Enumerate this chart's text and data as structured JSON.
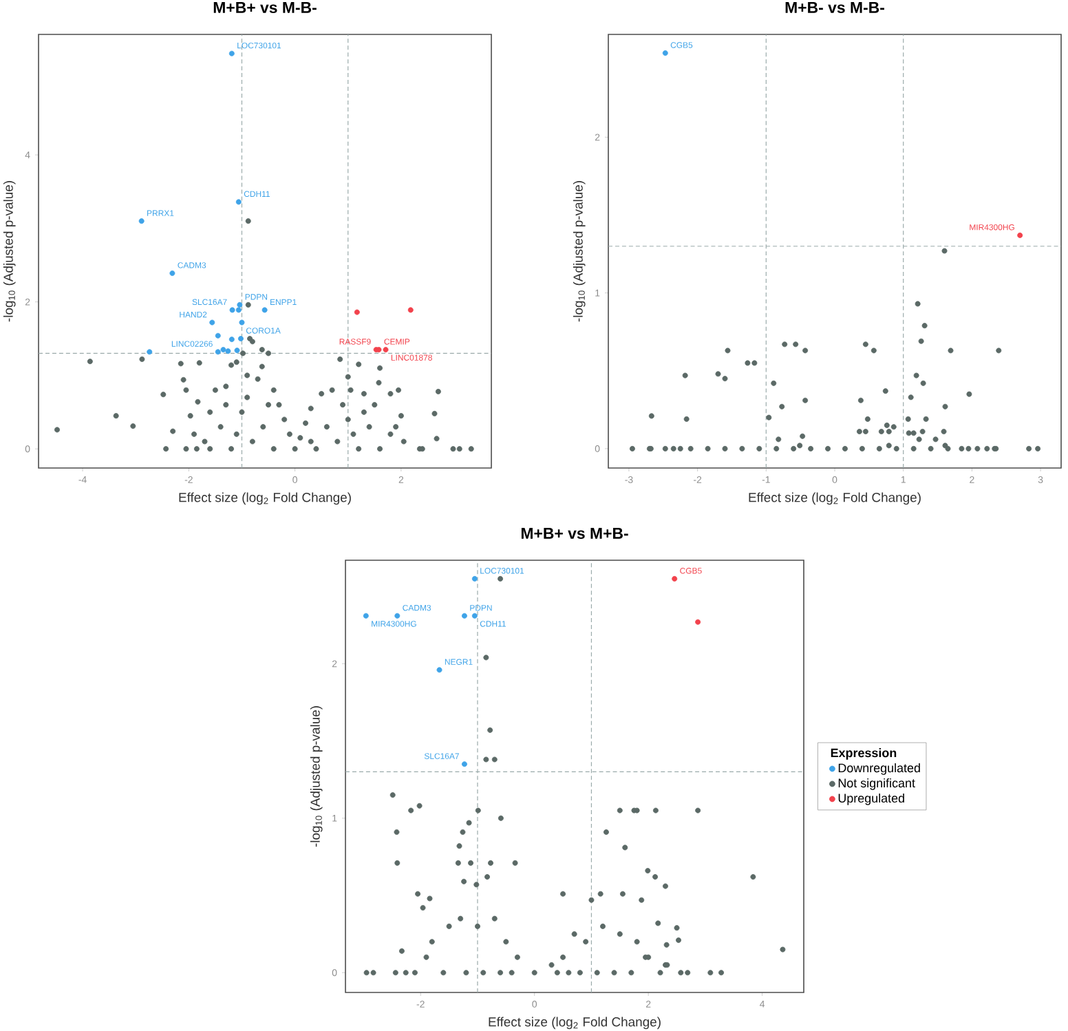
{
  "chart_data": [
    {
      "type": "scatter",
      "title": "M+B+ vs M-B-",
      "xlabel": "Effect size (log$_{2}$ Fold Change)",
      "ylabel": "-log$_{10}$ (Adjusted p-value)",
      "legend": false,
      "xlim": [
        -4.83,
        3.7
      ],
      "ylim": [
        -0.26,
        5.64
      ],
      "xticks": [
        -4,
        -2,
        0,
        2
      ],
      "yticks": [
        0,
        2,
        4
      ],
      "ref_lines": [
        {
          "axis": "x",
          "value": -1,
          "color": "#9aaaaa",
          "line_style": "dashed"
        },
        {
          "axis": "x",
          "value": 1,
          "color": "#9aaaaa",
          "line_style": "dashed"
        },
        {
          "axis": "y",
          "value": 1.3,
          "color": "#9aaaaa",
          "line_style": "dashed"
        }
      ],
      "series": [
        {
          "color": "#3fa3e8",
          "x": [
            -1.19,
            -1.06,
            -2.89,
            -2.31,
            -1.04,
            -1.18,
            -1.06,
            -0.57,
            -1.56,
            -1.0,
            -1.45,
            -1.19,
            -1.02,
            -1.35,
            -1.26,
            -1.09,
            -1.45,
            -2.74
          ],
          "values": [
            5.38,
            3.36,
            3.1,
            2.39,
            1.96,
            1.89,
            1.89,
            1.89,
            1.72,
            1.72,
            1.54,
            1.49,
            1.5,
            1.35,
            1.33,
            1.34,
            1.32,
            1.32
          ]
        },
        {
          "color": "#5b6966",
          "x": [
            -4.48,
            -3.86,
            -3.37,
            -3.05,
            -2.88,
            -2.48,
            -2.3,
            -2.15,
            -2.1,
            -2.05,
            -1.97,
            -1.8,
            -1.83,
            -2.43,
            -2.05,
            -1.85,
            -1.7,
            -1.6,
            -1.5,
            -1.3,
            -1.2,
            -1.1,
            -0.98,
            -0.85,
            -0.8,
            -0.62,
            -0.5,
            -0.62,
            -0.9,
            -0.7,
            -0.4,
            -0.3,
            -0.2,
            -0.1,
            0,
            0.1,
            0.2,
            0.3,
            0.5,
            0.7,
            0.85,
            1.0,
            1.2,
            1.05,
            1.3,
            1.58,
            1.5,
            1.8,
            1.95,
            2.0,
            2.05,
            1.9,
            2.35,
            2.4,
            2.63,
            2.67,
            2.7,
            2.98,
            3.1,
            3.32,
            1.4,
            -1.4,
            -1.0,
            -0.6,
            0.6,
            1.0,
            -0.8,
            0.8,
            -1.9,
            1.8,
            -0.88,
            -0.88,
            1.6,
            -1.6,
            1.6,
            -1.2,
            1.2,
            -0.4,
            0.4,
            -1.3,
            -0.9,
            -0.5,
            0.3,
            0.9,
            1.3,
            -1.1,
            1.1
          ],
          "values": [
            0.26,
            1.19,
            0.45,
            0.31,
            1.22,
            0.74,
            0.24,
            1.16,
            0.94,
            0.8,
            0.45,
            1.17,
            0.64,
            0,
            0,
            0,
            0.1,
            0.5,
            0.8,
            0.85,
            1.14,
            1.18,
            1.3,
            1.5,
            1.46,
            1.35,
            1.3,
            1.12,
            1.0,
            0.95,
            0.8,
            0.6,
            0.4,
            0.2,
            0,
            0.15,
            0.35,
            0.55,
            0.75,
            0.8,
            1.22,
            0.98,
            1.15,
            0.8,
            0.75,
            0.9,
            0.6,
            0.75,
            0.8,
            0.45,
            0.1,
            0.3,
            0,
            0,
            0.48,
            0.14,
            0.78,
            0,
            0,
            0,
            0.3,
            0.3,
            0.5,
            0.3,
            0.3,
            0.4,
            0.1,
            0.1,
            0.2,
            0.2,
            3.1,
            1.96,
            1.1,
            0,
            0,
            0,
            0,
            0,
            0,
            0.6,
            0.7,
            0.6,
            0.1,
            0.6,
            0.5,
            0.2,
            0.2
          ]
        },
        {
          "color": "#f2424c",
          "x": [
            1.17,
            2.18,
            1.53,
            1.58,
            1.71
          ],
          "values": [
            1.86,
            1.89,
            1.35,
            1.35,
            1.35
          ]
        }
      ],
      "annotations": [
        {
          "text": "LOC730101",
          "x": -1.19,
          "y": 5.38
        },
        {
          "text": "CDH11",
          "x": -1.06,
          "y": 3.36
        },
        {
          "text": "PRRX1",
          "x": -2.89,
          "y": 3.1
        },
        {
          "text": "CADM3",
          "x": -2.31,
          "y": 2.39
        },
        {
          "text": "PDPN",
          "x": -1.04,
          "y": 1.96
        },
        {
          "text": "SLC16A7",
          "x": -1.18,
          "y": 1.89
        },
        {
          "text": "ENPP1",
          "x": -0.57,
          "y": 1.89
        },
        {
          "text": "HAND2",
          "x": -1.56,
          "y": 1.72
        },
        {
          "text": "CORO1A",
          "x": -1.02,
          "y": 1.5
        },
        {
          "text": "LINC02266",
          "x": -1.45,
          "y": 1.32
        },
        {
          "text": "CEMIP",
          "x": 1.58,
          "y": 1.35
        },
        {
          "text": "RASSF9",
          "x": 1.53,
          "y": 1.35
        },
        {
          "text": "LINC01878",
          "x": 1.71,
          "y": 1.35
        }
      ]
    },
    {
      "type": "scatter",
      "title": "M+B- vs M-B-",
      "xlabel": "Effect size (log$_{2}$ Fold Change)",
      "ylabel": "-log$_{10}$ (Adjusted p-value)",
      "legend": false,
      "xlim": [
        -3.3,
        3.3
      ],
      "ylim": [
        -0.124,
        2.66
      ],
      "xticks": [
        -3,
        -2,
        -1,
        0,
        1,
        2,
        3
      ],
      "yticks": [
        0,
        1,
        2
      ],
      "ref_lines": [
        {
          "axis": "x",
          "value": -1,
          "color": "#9aaaaa",
          "line_style": "dashed"
        },
        {
          "axis": "x",
          "value": 1,
          "color": "#9aaaaa",
          "line_style": "dashed"
        },
        {
          "axis": "y",
          "value": 1.3,
          "color": "#9aaaaa",
          "line_style": "dashed"
        }
      ],
      "series": [
        {
          "color": "#3fa3e8",
          "x": [
            -2.47
          ],
          "values": [
            2.54
          ]
        },
        {
          "color": "#5b6966",
          "x": [
            1.6,
            1.21,
            1.31,
            1.26,
            1.69,
            2.39,
            0.45,
            0.57,
            -0.73,
            -0.57,
            -0.43,
            -1.56,
            -1.27,
            -1.17,
            -2.18,
            -1.7,
            -1.6,
            -0.89,
            -0.43,
            -0.77,
            -0.96,
            -2.16,
            -2.67,
            -0.47,
            -0.82,
            -0.51,
            0.38,
            0.74,
            1.19,
            1.29,
            1.11,
            1.96,
            1.61,
            0.48,
            1.07,
            1.33,
            0.36,
            0.45,
            0.68,
            0.76,
            0.86,
            0.79,
            1.08,
            1.15,
            1.28,
            1.59,
            1.23,
            1.47,
            1.61,
            0.79,
            -2.95,
            -2.7,
            -2.68,
            -2.47,
            -2.35,
            -2.25,
            -2.1,
            -1.85,
            -1.6,
            -1.35,
            -1.1,
            -0.85,
            -0.6,
            -0.35,
            -0.1,
            0.15,
            0.4,
            0.65,
            0.9,
            1.15,
            1.4,
            1.65,
            1.85,
            1.95,
            2.08,
            2.22,
            2.33,
            2.35,
            2.83,
            2.96
          ],
          "values": [
            1.27,
            0.93,
            0.79,
            0.69,
            0.63,
            0.63,
            0.67,
            0.63,
            0.67,
            0.67,
            0.63,
            0.63,
            0.55,
            0.55,
            0.47,
            0.48,
            0.45,
            0.42,
            0.31,
            0.27,
            0.2,
            0.19,
            0.21,
            0.08,
            0.06,
            0.02,
            0.31,
            0.37,
            0.47,
            0.42,
            0.33,
            0.35,
            0.27,
            0.19,
            0.19,
            0.19,
            0.11,
            0.11,
            0.11,
            0.15,
            0.14,
            0.11,
            0.1,
            0.1,
            0.11,
            0.11,
            0.06,
            0.06,
            0.02,
            0.02,
            0,
            0,
            0,
            0,
            0,
            0,
            0,
            0,
            0,
            0,
            0,
            0,
            0,
            0,
            0,
            0,
            0,
            0,
            0,
            0,
            0,
            0,
            0,
            0,
            0,
            0,
            0,
            0,
            0,
            0
          ]
        },
        {
          "color": "#f2424c",
          "x": [
            2.7
          ],
          "values": [
            1.37
          ]
        }
      ],
      "annotations": [
        {
          "text": "CGB5",
          "x": -2.47,
          "y": 2.54
        },
        {
          "text": "MIR4300HG",
          "x": 2.7,
          "y": 1.37
        }
      ]
    },
    {
      "type": "scatter",
      "title": "M+B+ vs M+B-",
      "xlabel": "Effect size (log$_{2}$ Fold Change)",
      "ylabel": "-log$_{10}$ (Adjusted p-value)",
      "legend": "right",
      "legend_title": "Expression",
      "xlim": [
        -3.32,
        4.73
      ],
      "ylim": [
        -0.128,
        2.67
      ],
      "xticks": [
        -2,
        0,
        2,
        4
      ],
      "yticks": [
        0,
        1,
        2
      ],
      "ref_lines": [
        {
          "axis": "x",
          "value": -1,
          "color": "#9aaaaa",
          "line_style": "dashed"
        },
        {
          "axis": "x",
          "value": 1,
          "color": "#9aaaaa",
          "line_style": "dashed"
        },
        {
          "axis": "y",
          "value": 1.3,
          "color": "#9aaaaa",
          "line_style": "dashed"
        }
      ],
      "series": [
        {
          "name": "Downregulated",
          "color": "#3fa3e8",
          "x": [
            -1.05,
            -2.41,
            -2.96,
            -1.23,
            -1.05,
            -1.67,
            -1.23
          ],
          "values": [
            2.55,
            2.31,
            2.31,
            2.31,
            2.31,
            1.96,
            1.35
          ]
        },
        {
          "name": "Not significant",
          "color": "#5b6966",
          "x": [
            -0.6,
            -0.85,
            -0.78,
            -0.85,
            -0.7,
            -2.49,
            -2.17,
            -2.02,
            -2.42,
            -2.41,
            -0.99,
            -1.15,
            -0.59,
            -1.26,
            -1.32,
            -1.34,
            -1.12,
            -0.77,
            -0.34,
            -0.83,
            -1.24,
            -1.02,
            -2.05,
            -1.96,
            -1.84,
            -2.33,
            -2.95,
            -2.83,
            -2.44,
            -2.26,
            -2.1,
            -1.8,
            -1.5,
            -1.3,
            -1.0,
            -0.7,
            -0.5,
            -0.3,
            0,
            0.3,
            0.5,
            0.7,
            0.9,
            1.2,
            1.5,
            1.8,
            2.0,
            2.3,
            1.5,
            1.75,
            1.8,
            2.13,
            2.87,
            1.26,
            1.59,
            1.99,
            2.12,
            2.3,
            3.84,
            4.36,
            0.5,
            1.16,
            1.0,
            1.55,
            1.88,
            2.17,
            2.5,
            2.53,
            2.32,
            2.33,
            2.69,
            3.09,
            3.28,
            2.57,
            2.21,
            -1.6,
            -1.2,
            -0.9,
            -0.6,
            -0.4,
            0.4,
            0.6,
            0.8,
            1.1,
            1.4,
            1.7,
            -1.9,
            1.95
          ],
          "values": [
            2.55,
            2.04,
            1.57,
            1.38,
            1.38,
            1.15,
            1.05,
            1.08,
            0.91,
            0.71,
            1.05,
            0.97,
            1.0,
            0.91,
            0.82,
            0.71,
            0.71,
            0.71,
            0.71,
            0.62,
            0.59,
            0.57,
            0.51,
            0.42,
            0.48,
            0.14,
            0,
            0,
            0,
            0,
            0,
            0.2,
            0.3,
            0.35,
            0.3,
            0.35,
            0.2,
            0.1,
            0,
            0.05,
            0.1,
            0.25,
            0.2,
            0.3,
            0.25,
            0.2,
            0.1,
            0.05,
            1.05,
            1.05,
            1.05,
            1.05,
            1.05,
            0.91,
            0.81,
            0.66,
            0.62,
            0.56,
            0.62,
            0.15,
            0.51,
            0.51,
            0.47,
            0.51,
            0.47,
            0.32,
            0.29,
            0.21,
            0.18,
            0.05,
            0,
            0,
            0,
            0,
            0,
            0,
            0,
            0,
            0,
            0,
            0,
            0,
            0,
            0,
            0,
            0,
            0.1,
            0.1
          ]
        },
        {
          "name": "Upregulated",
          "color": "#f2424c",
          "x": [
            2.46,
            2.87
          ],
          "values": [
            2.55,
            2.27
          ]
        }
      ],
      "annotations": [
        {
          "text": "LOC730101",
          "x": -1.05,
          "y": 2.55
        },
        {
          "text": "CADM3",
          "x": -2.41,
          "y": 2.31
        },
        {
          "text": "MIR4300HG",
          "x": -2.96,
          "y": 2.31
        },
        {
          "text": "PDPN",
          "x": -1.23,
          "y": 2.31
        },
        {
          "text": "CDH11",
          "x": -1.05,
          "y": 2.31
        },
        {
          "text": "NEGR1",
          "x": -1.67,
          "y": 1.96
        },
        {
          "text": "SLC16A7",
          "x": -1.23,
          "y": 1.35
        },
        {
          "text": "CGB5",
          "x": 2.46,
          "y": 2.55
        }
      ]
    }
  ]
}
